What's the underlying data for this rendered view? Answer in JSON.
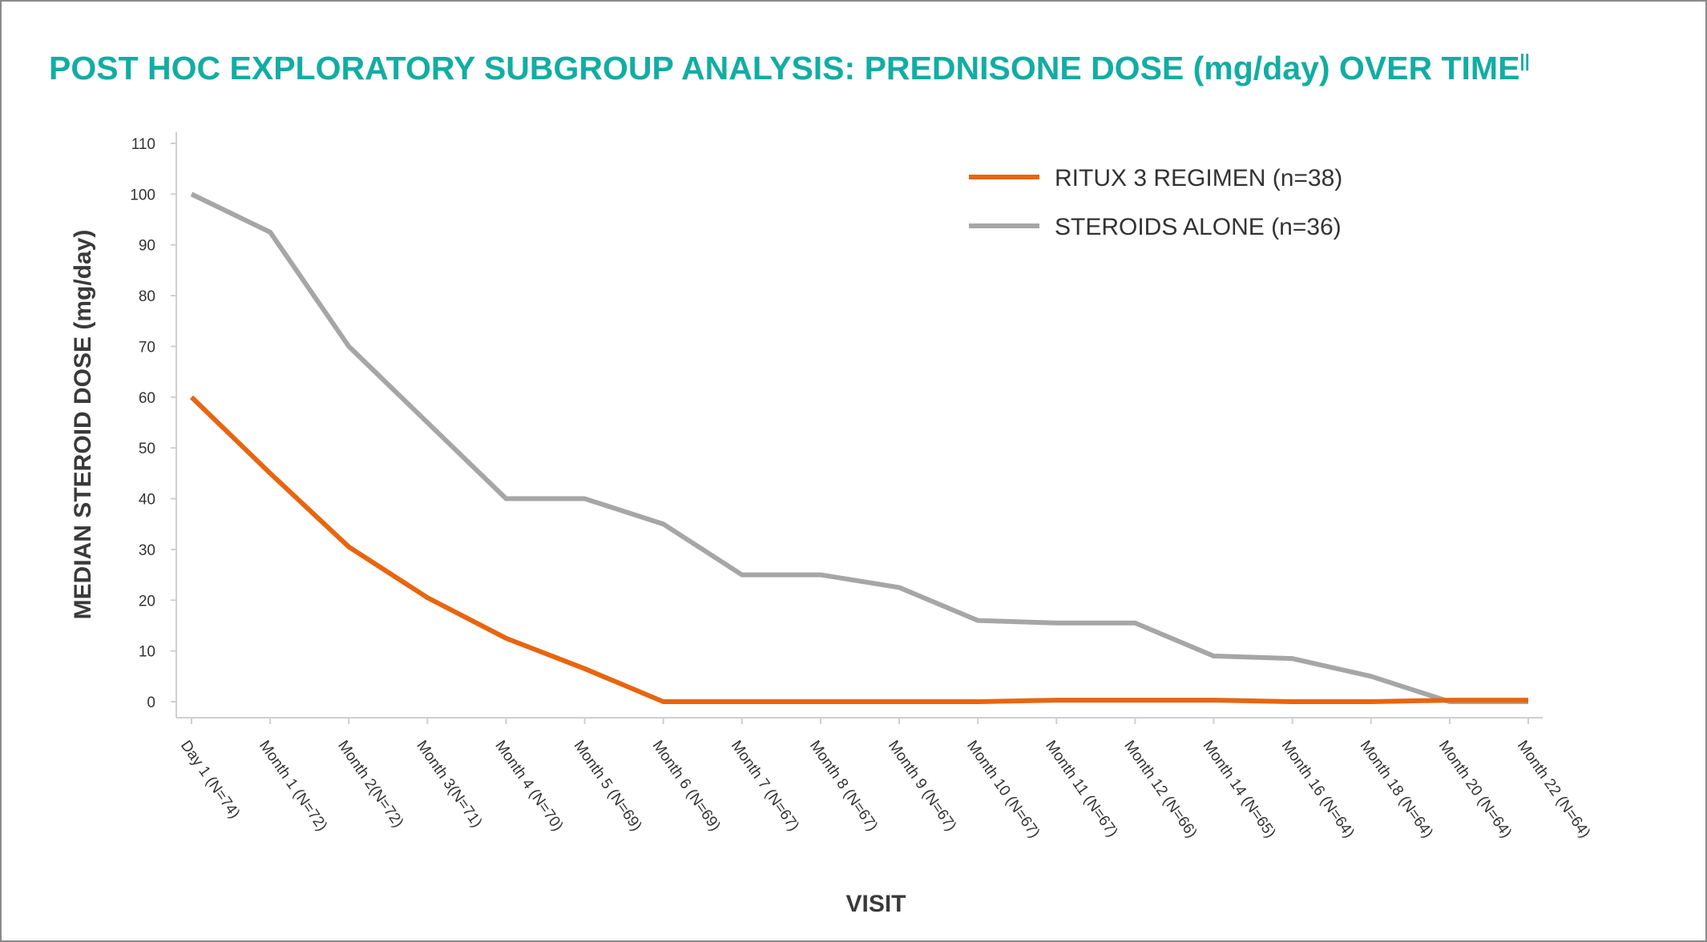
{
  "chart_data": {
    "type": "line",
    "title": "POST HOC EXPLORATORY SUBGROUP ANALYSIS: PREDNISONE DOSE (mg/day) OVER TIME",
    "title_superscript": "||",
    "xlabel": "VISIT",
    "ylabel": "MEDIAN STEROID DOSE (mg/day)",
    "ylim": [
      0,
      110
    ],
    "yticks": [
      0,
      10,
      20,
      30,
      40,
      50,
      60,
      70,
      80,
      90,
      100,
      110
    ],
    "categories": [
      "Day 1 (N=74)",
      "Month 1 (N=72)",
      "Month 2(N=72)",
      "Month 3(N=71)",
      "Month 4 (N=70)",
      "Month 5 (N=69)",
      "Month 6 (N=69)",
      "Month 7 (N=67)",
      "Month 8 (N=67)",
      "Month 9 (N=67)",
      "Month 10 (N=67)",
      "Month 11 (N=67)",
      "Month 12 (N=66)",
      "Month 14 (N=65)",
      "Month 16 (N=64)",
      "Month 18 (N=64)",
      "Month 20 (N=64)",
      "Month 22 (N=64)"
    ],
    "grid": false,
    "legend_position": "top-right",
    "series": [
      {
        "name": "RITUX 3 REGIMEN (n=38)",
        "color": "#E8650F",
        "values": [
          60,
          45,
          30.5,
          20.5,
          12.5,
          6.5,
          0,
          0,
          0,
          0,
          0,
          0.3,
          0.3,
          0.3,
          0,
          0,
          0.3,
          0.3
        ]
      },
      {
        "name": "STEROIDS ALONE (n=36)",
        "color": "#A6A6A6",
        "values": [
          100,
          92.5,
          70,
          55,
          40,
          40,
          35,
          25,
          25,
          22.5,
          16,
          15.5,
          15.5,
          9,
          8.5,
          5,
          0,
          0
        ]
      }
    ]
  }
}
